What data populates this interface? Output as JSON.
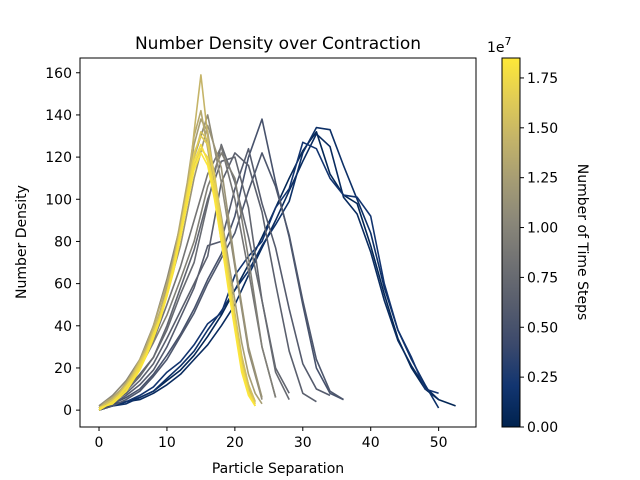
{
  "chart_data": {
    "type": "line",
    "title": "Number Density over Contraction",
    "xlabel": "Particle Separation",
    "ylabel": "Number Density",
    "xlim": [
      -2.8,
      55.5
    ],
    "ylim": [
      -8,
      167
    ],
    "xticks": [
      0,
      10,
      20,
      30,
      40,
      50
    ],
    "yticks": [
      0,
      20,
      40,
      60,
      80,
      100,
      120,
      140,
      160
    ],
    "grid": false,
    "colorbar": {
      "label": "Number of Time Steps",
      "multiplier": "1e7",
      "range": [
        0,
        1.85
      ],
      "ticks": [
        "0.00",
        "0.25",
        "0.50",
        "0.75",
        "1.00",
        "1.25",
        "1.50",
        "1.75"
      ],
      "tick_values": [
        0,
        0.25,
        0.5,
        0.75,
        1.0,
        1.25,
        1.5,
        1.75
      ],
      "colormap": "cividis",
      "stops": [
        "#00224e",
        "#123570",
        "#3b496c",
        "#575d6d",
        "#707173",
        "#8a8779",
        "#a59c74",
        "#c3b369",
        "#e1cc55",
        "#fee838"
      ]
    },
    "series": [
      {
        "t": 0.05,
        "x": [
          0,
          2,
          4,
          6,
          8,
          10,
          12,
          14,
          16,
          18,
          20,
          22,
          24,
          26,
          28,
          30,
          32,
          34,
          36,
          38,
          40,
          42,
          44,
          46,
          48,
          50,
          52.5
        ],
        "y": [
          0,
          2,
          4,
          6,
          9,
          14,
          19,
          26,
          35,
          45,
          57,
          69,
          82,
          96,
          110,
          123,
          132,
          112,
          102,
          98,
          78,
          55,
          34,
          20,
          10,
          5,
          2
        ]
      },
      {
        "t": 0.1,
        "x": [
          0,
          2,
          4,
          6,
          8,
          10,
          12,
          14,
          16,
          18,
          20,
          22,
          24,
          26,
          28,
          30,
          32,
          34,
          36,
          38,
          40,
          42,
          44,
          46,
          48,
          50
        ],
        "y": [
          0,
          2,
          4,
          5,
          8,
          12,
          17,
          24,
          31,
          40,
          50,
          64,
          77,
          90,
          104,
          118,
          131,
          125,
          101,
          93,
          75,
          52,
          33,
          21,
          11,
          5
        ]
      },
      {
        "t": 0.15,
        "x": [
          0,
          2,
          4,
          6,
          8,
          10,
          12,
          14,
          16,
          18,
          20,
          22,
          24,
          26,
          28,
          30,
          32,
          34,
          36,
          38,
          40,
          42,
          44,
          46,
          48,
          50
        ],
        "y": [
          1,
          2,
          3,
          6,
          9,
          15,
          21,
          28,
          38,
          47,
          57,
          66,
          78,
          88,
          99,
          122,
          134,
          133,
          116,
          100,
          84,
          58,
          38,
          24,
          12,
          1
        ]
      },
      {
        "t": 0.2,
        "x": [
          0,
          2,
          4,
          6,
          8,
          10,
          12,
          14,
          16,
          18,
          20,
          22,
          24,
          26,
          28,
          30,
          32,
          34,
          36,
          38,
          40,
          42,
          44,
          46,
          48,
          50
        ],
        "y": [
          1,
          3,
          4,
          7,
          11,
          18,
          23,
          31,
          41,
          46,
          64,
          73,
          80,
          96,
          105,
          127,
          124,
          110,
          102,
          101,
          92,
          60,
          38,
          25,
          10,
          8
        ]
      },
      {
        "t": 0.5,
        "x": [
          0,
          2,
          4,
          6,
          8,
          10,
          12,
          14,
          16,
          18,
          20,
          22,
          24,
          26,
          28,
          30,
          32,
          34,
          36
        ],
        "y": [
          1,
          3,
          6,
          10,
          17,
          26,
          36,
          48,
          62,
          74,
          92,
          120,
          138,
          108,
          82,
          50,
          20,
          8,
          5
        ]
      },
      {
        "t": 0.55,
        "x": [
          0,
          2,
          4,
          6,
          8,
          10,
          12,
          14,
          16,
          18,
          20,
          22,
          24,
          26,
          28,
          30,
          32,
          34,
          36
        ],
        "y": [
          0,
          2,
          5,
          9,
          16,
          24,
          35,
          46,
          60,
          72,
          84,
          104,
          122,
          106,
          83,
          52,
          24,
          9,
          5
        ]
      },
      {
        "t": 0.6,
        "x": [
          0,
          2,
          4,
          6,
          8,
          10,
          12,
          14,
          16,
          18,
          20,
          22,
          24,
          26,
          28,
          30,
          32,
          34
        ],
        "y": [
          1,
          3,
          7,
          12,
          19,
          30,
          44,
          58,
          78,
          80,
          105,
          124,
          98,
          77,
          48,
          22,
          10,
          7
        ]
      },
      {
        "t": 0.65,
        "x": [
          0,
          2,
          4,
          6,
          8,
          10,
          12,
          14,
          16,
          18,
          20,
          22,
          24,
          26,
          28,
          30,
          32
        ],
        "y": [
          1,
          4,
          8,
          14,
          22,
          34,
          47,
          60,
          73,
          108,
          122,
          116,
          94,
          60,
          28,
          8,
          4
        ]
      },
      {
        "t": 0.7,
        "x": [
          0,
          2,
          4,
          6,
          8,
          10,
          12,
          14,
          16,
          18,
          20,
          22,
          24,
          26,
          28
        ],
        "y": [
          1,
          5,
          10,
          17,
          25,
          40,
          58,
          76,
          100,
          118,
          120,
          96,
          52,
          20,
          8
        ]
      },
      {
        "t": 0.75,
        "x": [
          0,
          2,
          4,
          6,
          8,
          10,
          12,
          14,
          16,
          18,
          20,
          22,
          24,
          26,
          28
        ],
        "y": [
          1,
          4,
          9,
          16,
          25,
          38,
          55,
          70,
          98,
          126,
          108,
          82,
          52,
          18,
          5
        ]
      },
      {
        "t": 0.85,
        "x": [
          0,
          2,
          4,
          6,
          8,
          10,
          12,
          14,
          16,
          18,
          20,
          22,
          24,
          26
        ],
        "y": [
          2,
          6,
          12,
          20,
          33,
          50,
          68,
          90,
          112,
          125,
          100,
          66,
          30,
          6
        ]
      },
      {
        "t": 0.95,
        "x": [
          0,
          2,
          4,
          6,
          8,
          10,
          12,
          14,
          16,
          18,
          20,
          22,
          24,
          26
        ],
        "y": [
          1,
          5,
          10,
          20,
          32,
          45,
          62,
          80,
          106,
          122,
          110,
          72,
          30,
          6
        ]
      },
      {
        "t": 1.05,
        "x": [
          0,
          2,
          4,
          6,
          8,
          10,
          12,
          14,
          16,
          18,
          20,
          22,
          24
        ],
        "y": [
          2,
          7,
          14,
          24,
          40,
          62,
          88,
          120,
          140,
          108,
          68,
          28,
          5
        ]
      },
      {
        "t": 1.15,
        "x": [
          0,
          2,
          4,
          6,
          8,
          10,
          12,
          14,
          16,
          18,
          20,
          22,
          24
        ],
        "y": [
          1,
          6,
          12,
          22,
          35,
          55,
          78,
          110,
          135,
          115,
          70,
          30,
          6
        ]
      },
      {
        "t": 1.25,
        "x": [
          0,
          1,
          2,
          3,
          4,
          5,
          6,
          7,
          8,
          9,
          10,
          11,
          12,
          13,
          14,
          15,
          16,
          17,
          18,
          19,
          20,
          21,
          22,
          23,
          24
        ],
        "y": [
          1,
          3,
          6,
          9,
          12,
          17,
          23,
          30,
          38,
          47,
          58,
          70,
          88,
          104,
          126,
          138,
          132,
          110,
          92,
          72,
          52,
          32,
          17,
          8,
          3
        ]
      },
      {
        "t": 1.35,
        "x": [
          0,
          1,
          2,
          3,
          4,
          5,
          6,
          7,
          8,
          9,
          10,
          11,
          12,
          13,
          14,
          15,
          16,
          17,
          18,
          19,
          20,
          21,
          22,
          23
        ],
        "y": [
          1,
          4,
          6,
          9,
          13,
          18,
          24,
          31,
          40,
          50,
          60,
          72,
          90,
          108,
          130,
          142,
          124,
          104,
          80,
          62,
          42,
          24,
          12,
          4
        ]
      },
      {
        "t": 1.45,
        "x": [
          0,
          1,
          2,
          3,
          4,
          5,
          6,
          7,
          8,
          9,
          10,
          11,
          12,
          13,
          14,
          15,
          16,
          17,
          18,
          19,
          20,
          21,
          22,
          23
        ],
        "y": [
          0,
          2,
          5,
          8,
          12,
          16,
          22,
          29,
          37,
          46,
          56,
          68,
          84,
          102,
          132,
          159,
          130,
          102,
          80,
          60,
          40,
          22,
          10,
          3
        ]
      },
      {
        "t": 1.55,
        "x": [
          0,
          1,
          2,
          3,
          4,
          5,
          6,
          7,
          8,
          9,
          10,
          11,
          12,
          13,
          14,
          15,
          16,
          17,
          18,
          19,
          20,
          21,
          22,
          23
        ],
        "y": [
          1,
          3,
          5,
          8,
          12,
          17,
          23,
          29,
          38,
          46,
          56,
          68,
          84,
          100,
          120,
          132,
          128,
          112,
          90,
          68,
          46,
          26,
          12,
          4
        ]
      },
      {
        "t": 1.65,
        "x": [
          0,
          1,
          2,
          3,
          4,
          5,
          6,
          7,
          8,
          9,
          10,
          11,
          12,
          13,
          14,
          15,
          16,
          17,
          18,
          19,
          20,
          21,
          22,
          23
        ],
        "y": [
          1,
          2,
          4,
          7,
          11,
          16,
          22,
          28,
          36,
          44,
          56,
          70,
          86,
          104,
          122,
          130,
          126,
          110,
          88,
          64,
          42,
          22,
          9,
          3
        ]
      },
      {
        "t": 1.72,
        "x": [
          0,
          1,
          2,
          3,
          4,
          5,
          6,
          7,
          8,
          9,
          10,
          11,
          12,
          13,
          14,
          15,
          16,
          17,
          18,
          19,
          20,
          21,
          22,
          23
        ],
        "y": [
          0,
          2,
          4,
          7,
          10,
          15,
          21,
          27,
          35,
          44,
          54,
          66,
          82,
          100,
          116,
          124,
          120,
          106,
          86,
          64,
          42,
          22,
          9,
          2
        ]
      },
      {
        "t": 1.78,
        "x": [
          0,
          1,
          2,
          3,
          4,
          5,
          6,
          7,
          8,
          9,
          10,
          11,
          12,
          13,
          14,
          15,
          16,
          17,
          18,
          19,
          20,
          21,
          22,
          23
        ],
        "y": [
          1,
          2,
          4,
          7,
          11,
          15,
          20,
          27,
          36,
          44,
          55,
          68,
          84,
          102,
          118,
          126,
          118,
          102,
          82,
          60,
          40,
          20,
          8,
          2
        ]
      },
      {
        "t": 1.83,
        "x": [
          0,
          1,
          2,
          3,
          4,
          5,
          6,
          7,
          8,
          9,
          10,
          11,
          12,
          13,
          14,
          15,
          16,
          17,
          18,
          19,
          20,
          21,
          22,
          23
        ],
        "y": [
          0,
          2,
          3,
          6,
          9,
          14,
          19,
          26,
          34,
          43,
          54,
          67,
          82,
          98,
          114,
          122,
          116,
          100,
          80,
          58,
          38,
          18,
          7,
          2
        ]
      }
    ]
  }
}
